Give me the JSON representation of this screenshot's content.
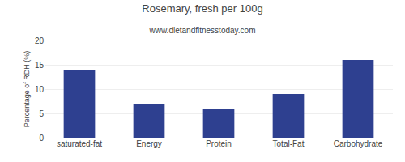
{
  "chart_data": {
    "type": "bar",
    "title": "Rosemary, fresh per 100g",
    "subtitle": "www.dietandfitnesstoday.com",
    "ylabel": "Percentage of RDH (%)",
    "categories": [
      "saturated-fat",
      "Energy",
      "Protein",
      "Total-Fat",
      "Carbohydrate"
    ],
    "values": [
      14,
      7,
      6,
      9,
      16
    ],
    "color": "#2e4090",
    "ylim": [
      0,
      20
    ],
    "yticks": [
      0,
      5,
      10,
      15,
      20
    ],
    "grid": true
  }
}
